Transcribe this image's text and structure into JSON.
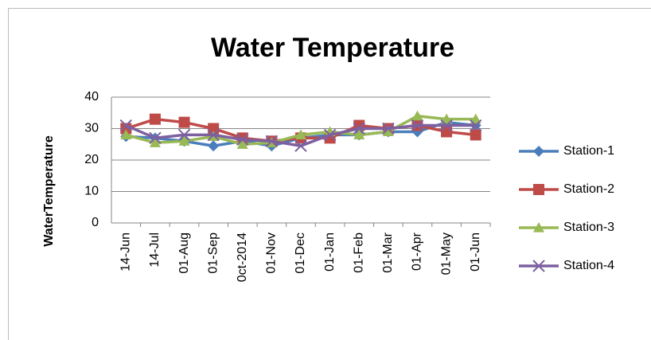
{
  "chart_data": {
    "type": "line",
    "title": "Water Temperature",
    "y_label": "WaterTemperature",
    "categories": [
      "14-Jun",
      "14-Jul",
      "01-Aug",
      "01-Sep",
      "0ct-2014",
      "01-Nov",
      "01-Dec",
      "01-Jan",
      "01-Feb",
      "01-Mar",
      "01-Apr",
      "01-May",
      "01-Jun"
    ],
    "series": [
      {
        "name": "Station-1",
        "color": "#4a7ebb",
        "marker": "diamond",
        "values": [
          27.5,
          27,
          26,
          24.5,
          26,
          24.5,
          27,
          28,
          28,
          29,
          29,
          32,
          31
        ]
      },
      {
        "name": "Station-2",
        "color": "#be4b48",
        "marker": "square",
        "values": [
          30,
          33,
          32,
          30,
          27,
          26,
          27,
          27,
          31,
          30,
          31,
          29,
          28
        ]
      },
      {
        "name": "Station-3",
        "color": "#98b954",
        "marker": "triangle",
        "values": [
          28,
          25.5,
          26,
          27.5,
          25,
          25.5,
          28,
          29,
          28,
          29,
          34,
          33,
          33
        ]
      },
      {
        "name": "Station-4",
        "color": "#7d60a0",
        "marker": "x",
        "values": [
          31,
          27,
          28,
          28,
          26.5,
          26,
          24.5,
          28,
          30,
          30,
          31,
          31,
          31
        ]
      }
    ],
    "ylim": [
      0,
      40
    ],
    "yticks": [
      0,
      10,
      20,
      30,
      40
    ],
    "grid": true,
    "legend": "right"
  }
}
